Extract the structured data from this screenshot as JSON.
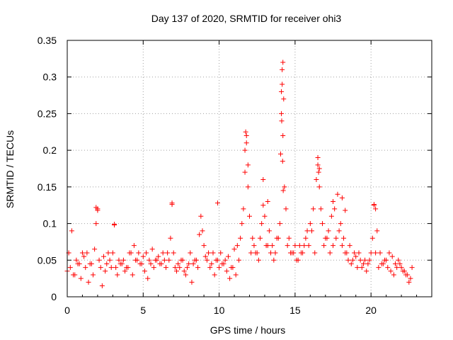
{
  "chart_data": {
    "type": "scatter",
    "title": "Day 137 of 2020, SRMTID for receiver ohi3",
    "xlabel": "GPS time / hours",
    "ylabel": "SRMTID / TECUs",
    "xlim": [
      0,
      24
    ],
    "ylim": [
      0,
      0.35
    ],
    "xticks": [
      0,
      5,
      10,
      15,
      20
    ],
    "xtick_labels": [
      "0",
      "5",
      "10",
      "15",
      "20"
    ],
    "yticks": [
      0,
      0.05,
      0.1,
      0.15,
      0.2,
      0.25,
      0.3,
      0.35
    ],
    "ytick_labels": [
      "0",
      "0.05",
      "0.1",
      "0.15",
      "0.2",
      "0.25",
      "0.3",
      "0.35"
    ],
    "grid": true,
    "marker": "+",
    "color": "#ff0000",
    "series": [
      {
        "name": "SRMTID",
        "x": [
          0.0,
          0.2,
          0.4,
          0.6,
          0.8,
          1.0,
          1.2,
          1.4,
          1.6,
          1.8,
          1.9,
          2.0,
          2.1,
          2.2,
          2.4,
          2.6,
          2.8,
          3.0,
          3.1,
          3.2,
          3.4,
          3.6,
          3.8,
          4.0,
          4.2,
          4.4,
          4.6,
          4.8,
          5.0,
          5.2,
          5.4,
          5.6,
          5.8,
          6.0,
          6.2,
          6.4,
          6.6,
          6.8,
          6.9,
          7.0,
          7.1,
          7.3,
          7.5,
          7.7,
          7.9,
          8.1,
          8.3,
          8.5,
          8.7,
          8.8,
          8.9,
          9.0,
          9.2,
          9.4,
          9.6,
          9.8,
          10.0,
          10.2,
          10.4,
          10.6,
          10.8,
          11.0,
          11.2,
          11.4,
          11.5,
          11.6,
          11.7,
          11.8,
          11.9,
          12.0,
          12.2,
          12.4,
          12.6,
          12.8,
          12.9,
          13.0,
          13.2,
          13.4,
          13.6,
          13.8,
          14.0,
          14.05,
          14.1,
          14.15,
          14.2,
          14.25,
          14.3,
          14.4,
          14.6,
          14.8,
          15.0,
          15.2,
          15.4,
          15.6,
          15.8,
          16.0,
          16.2,
          16.4,
          16.5,
          16.6,
          16.7,
          16.8,
          17.0,
          17.2,
          17.4,
          17.6,
          17.8,
          18.0,
          18.2,
          18.4,
          18.6,
          18.8,
          19.0,
          19.2,
          19.4,
          19.6,
          19.8,
          20.0,
          20.1,
          20.2,
          20.4,
          20.6,
          20.8,
          21.0,
          21.2,
          21.4,
          21.6,
          21.8,
          22.0,
          22.2,
          22.4,
          22.6,
          22.7,
          0.1,
          0.3,
          0.5,
          0.7,
          0.9,
          1.1,
          1.3,
          1.5,
          1.7,
          2.3,
          2.5,
          2.7,
          2.9,
          3.3,
          3.5,
          3.7,
          3.9,
          4.1,
          4.3,
          4.5,
          4.7,
          4.9,
          5.1,
          5.3,
          5.5,
          5.7,
          5.9,
          6.1,
          6.3,
          6.5,
          6.7,
          7.2,
          7.4,
          7.6,
          7.8,
          8.0,
          8.2,
          8.4,
          8.6,
          9.1,
          9.3,
          9.5,
          9.7,
          9.9,
          10.1,
          10.3,
          10.5,
          10.7,
          10.9,
          11.1,
          11.3,
          12.1,
          12.3,
          12.5,
          12.7,
          13.1,
          13.3,
          13.5,
          13.7,
          13.9,
          14.5,
          14.7,
          14.9,
          15.1,
          15.3,
          15.5,
          15.7,
          15.9,
          16.1,
          16.3,
          16.9,
          17.1,
          17.3,
          17.5,
          17.7,
          17.9,
          18.1,
          18.3,
          18.5,
          18.7,
          18.9,
          19.1,
          19.3,
          19.5,
          19.7,
          19.9,
          20.3,
          20.5,
          20.7,
          20.9,
          21.1,
          21.3,
          21.5,
          21.7,
          21.9,
          22.1,
          22.3,
          22.5,
          11.7,
          11.8,
          11.9,
          11.75,
          14.1,
          14.15,
          14.2,
          14.12,
          14.18,
          14.22,
          16.5,
          16.6,
          16.55,
          17.5,
          18.1,
          18.3,
          20.2,
          20.3,
          12.9,
          13.2,
          6.9,
          1.9,
          2.0,
          9.9,
          3.1
        ],
        "y": [
          0.035,
          0.04,
          0.03,
          0.05,
          0.045,
          0.06,
          0.04,
          0.02,
          0.045,
          0.065,
          0.1,
          0.12,
          0.05,
          0.04,
          0.055,
          0.045,
          0.05,
          0.06,
          0.098,
          0.04,
          0.05,
          0.045,
          0.035,
          0.04,
          0.06,
          0.07,
          0.05,
          0.045,
          0.055,
          0.06,
          0.05,
          0.065,
          0.05,
          0.055,
          0.045,
          0.05,
          0.06,
          0.08,
          0.128,
          0.06,
          0.04,
          0.045,
          0.05,
          0.035,
          0.04,
          0.06,
          0.045,
          0.05,
          0.085,
          0.11,
          0.09,
          0.07,
          0.05,
          0.04,
          0.06,
          0.05,
          0.04,
          0.045,
          0.05,
          0.055,
          0.04,
          0.065,
          0.07,
          0.08,
          0.1,
          0.12,
          0.17,
          0.22,
          0.15,
          0.11,
          0.08,
          0.06,
          0.05,
          0.1,
          0.125,
          0.11,
          0.07,
          0.06,
          0.05,
          0.08,
          0.1,
          0.195,
          0.25,
          0.31,
          0.32,
          0.27,
          0.15,
          0.12,
          0.08,
          0.06,
          0.07,
          0.05,
          0.06,
          0.07,
          0.09,
          0.1,
          0.12,
          0.16,
          0.19,
          0.15,
          0.12,
          0.1,
          0.08,
          0.09,
          0.11,
          0.12,
          0.14,
          0.1,
          0.08,
          0.06,
          0.07,
          0.05,
          0.055,
          0.06,
          0.04,
          0.05,
          0.045,
          0.06,
          0.08,
          0.126,
          0.09,
          0.06,
          0.045,
          0.05,
          0.06,
          0.055,
          0.045,
          0.05,
          0.04,
          0.035,
          0.03,
          0.025,
          0.04,
          0.06,
          0.09,
          0.03,
          0.045,
          0.025,
          0.055,
          0.06,
          0.045,
          0.03,
          0.015,
          0.035,
          0.06,
          0.04,
          0.03,
          0.045,
          0.05,
          0.04,
          0.06,
          0.03,
          0.05,
          0.06,
          0.045,
          0.035,
          0.025,
          0.045,
          0.04,
          0.05,
          0.045,
          0.06,
          0.04,
          0.05,
          0.035,
          0.04,
          0.05,
          0.03,
          0.045,
          0.02,
          0.05,
          0.04,
          0.055,
          0.06,
          0.045,
          0.03,
          0.05,
          0.06,
          0.045,
          0.035,
          0.025,
          0.04,
          0.03,
          0.05,
          0.06,
          0.07,
          0.06,
          0.08,
          0.07,
          0.09,
          0.07,
          0.06,
          0.08,
          0.07,
          0.06,
          0.06,
          0.05,
          0.07,
          0.06,
          0.08,
          0.07,
          0.09,
          0.06,
          0.07,
          0.08,
          0.06,
          0.07,
          0.08,
          0.09,
          0.07,
          0.06,
          0.05,
          0.045,
          0.06,
          0.04,
          0.05,
          0.045,
          0.035,
          0.05,
          0.06,
          0.04,
          0.045,
          0.05,
          0.04,
          0.035,
          0.03,
          0.04,
          0.045,
          0.035,
          0.03,
          0.02,
          0.2,
          0.21,
          0.18,
          0.225,
          0.28,
          0.29,
          0.22,
          0.24,
          0.185,
          0.145,
          0.18,
          0.175,
          0.17,
          0.13,
          0.135,
          0.118,
          0.125,
          0.12,
          0.16,
          0.13,
          0.126,
          0.122,
          0.118,
          0.128,
          0.099
        ]
      }
    ]
  }
}
